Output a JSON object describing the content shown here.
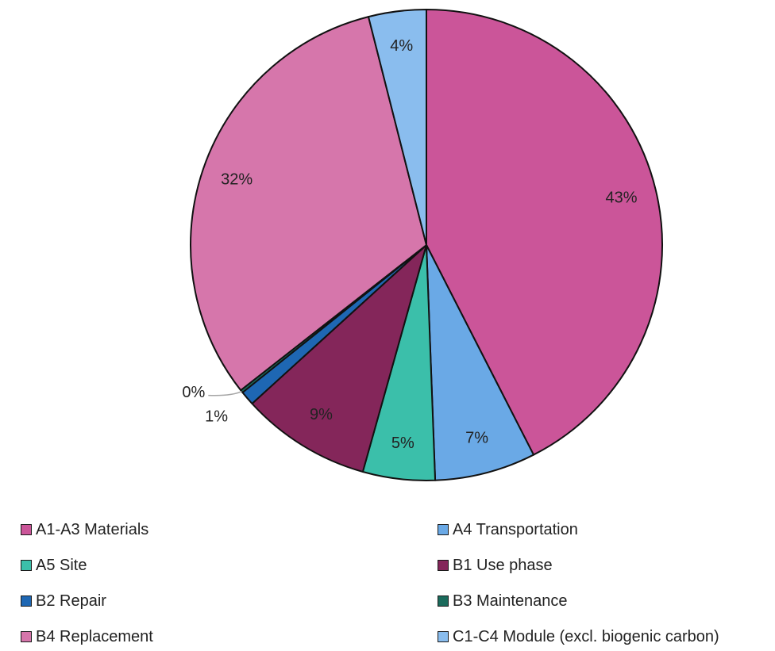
{
  "chart_data": {
    "type": "pie",
    "title": "",
    "series": [
      {
        "categories": [
          "A1-A3 Materials",
          "A4 Transportation",
          "A5 Site",
          "B1 Use phase",
          "B2 Repair",
          "B3 Maintenance",
          "B4 Replacement",
          "C1-C4 Module (excl. biogenic carbon)"
        ],
        "values": [
          43,
          7,
          5,
          9,
          1,
          0.2,
          32,
          4
        ],
        "labels": [
          "43%",
          "7%",
          "5%",
          "9%",
          "1%",
          "0%",
          "32%",
          "4%"
        ],
        "colors": [
          "#CB5599",
          "#6AA9E6",
          "#3BBFAA",
          "#84265A",
          "#1E67B3",
          "#1B6B5C",
          "#D676AB",
          "#8ABDEE"
        ]
      }
    ],
    "legend_position": "bottom"
  }
}
